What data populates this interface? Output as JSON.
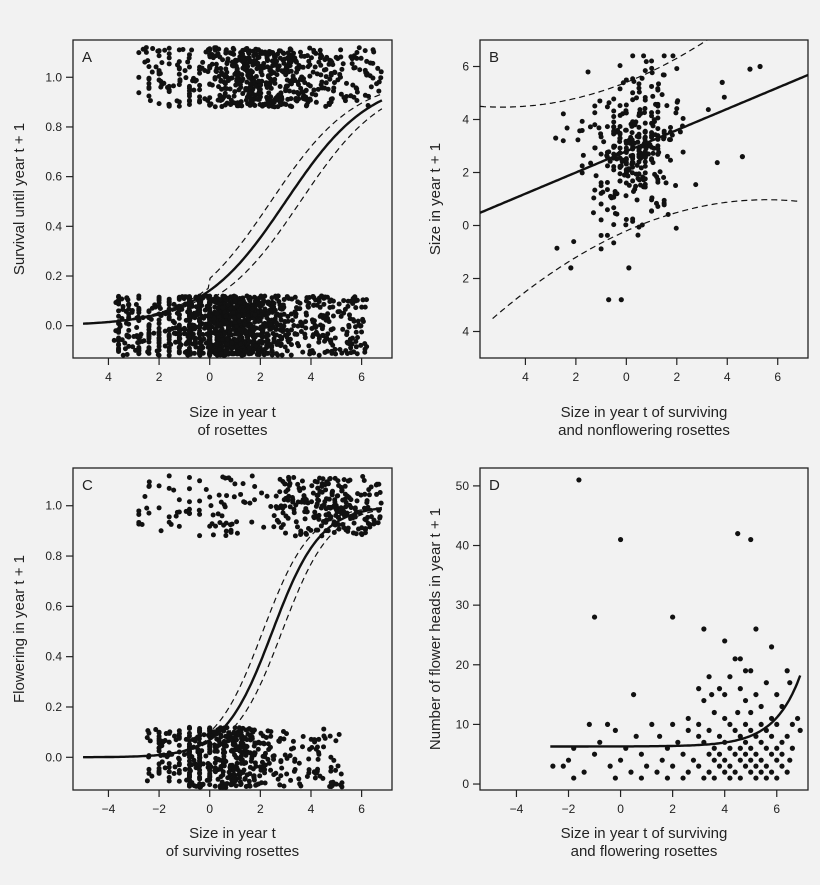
{
  "chart_data": [
    {
      "panel": "A",
      "type": "scatter",
      "xlabel": [
        "Size in year t",
        "of rosettes"
      ],
      "ylabel": "Survival until year t + 1",
      "xlim": [
        -5.4,
        7.2
      ],
      "ylim": [
        -0.13,
        1.15
      ],
      "xticks": [
        -4,
        -2,
        0,
        2,
        4,
        6
      ],
      "xtick_labels": [
        "4",
        "2",
        "0",
        "2",
        "4",
        "6"
      ],
      "yticks": [
        0.0,
        0.2,
        0.4,
        0.6,
        0.8,
        1.0
      ],
      "ytick_labels": [
        "0.0",
        "0.2",
        "0.4",
        "0.6",
        "0.8",
        "1.0"
      ],
      "fit": {
        "model": "logistic",
        "intercept": -1.8,
        "slope": 0.6,
        "ci_width": 0.35,
        "xrange": [
          -5,
          6.8
        ]
      },
      "clusters": [
        {
          "y": 1.0,
          "jitter": 0.12,
          "n": 650,
          "xrange": [
            -2.7,
            6.8
          ],
          "mode": 1.8
        },
        {
          "y": 0.0,
          "jitter": 0.12,
          "n": 1300,
          "xrange": [
            -3.8,
            6.2
          ],
          "mode": 0.8
        }
      ]
    },
    {
      "panel": "B",
      "type": "scatter",
      "xlabel": [
        "Size in year t of surviving",
        "and nonflowering rosettes"
      ],
      "ylabel": "Size in year t + 1",
      "xlim": [
        -5.8,
        7.2
      ],
      "ylim": [
        -5.0,
        7.0
      ],
      "xticks": [
        -4,
        -2,
        0,
        2,
        4,
        6
      ],
      "xtick_labels": [
        "4",
        "2",
        "0",
        "2",
        "4",
        "6"
      ],
      "yticks": [
        -4,
        -2,
        0,
        2,
        4,
        6
      ],
      "ytick_labels": [
        "4",
        "2",
        "0",
        "2",
        "4",
        "6"
      ],
      "fit": {
        "model": "linear",
        "intercept": 2.8,
        "slope": 0.4,
        "xrange": [
          -5.8,
          7.2
        ]
      },
      "pred_band": {
        "center": 0.3,
        "base": 2.6,
        "curv": 0.038
      },
      "cloud": {
        "n": 330,
        "xmean": 0.3,
        "xsd": 1.0,
        "ysd": 1.45
      }
    },
    {
      "panel": "C",
      "type": "scatter",
      "xlabel": [
        "Size in year t",
        "of surviving rosettes"
      ],
      "ylabel": "Flowering in year t + 1",
      "xlim": [
        -5.4,
        7.2
      ],
      "ylim": [
        -0.13,
        1.15
      ],
      "xticks": [
        -4,
        -2,
        0,
        2,
        4,
        6
      ],
      "xtick_labels": [
        "−4",
        "−2",
        "0",
        "2",
        "4",
        "6"
      ],
      "yticks": [
        0.0,
        0.2,
        0.4,
        0.6,
        0.8,
        1.0
      ],
      "ytick_labels": [
        "0.0",
        "0.2",
        "0.4",
        "0.6",
        "0.8",
        "1.0"
      ],
      "fit": {
        "model": "logistic",
        "intercept": -2.6,
        "slope": 1.05,
        "ci_width": 0.4,
        "xrange": [
          -5,
          6.8
        ]
      },
      "clusters": [
        {
          "y": 1.0,
          "jitter": 0.12,
          "n": 320,
          "xrange": [
            -2.7,
            6.8
          ],
          "mode": 4.8
        },
        {
          "y": 0.0,
          "jitter": 0.12,
          "n": 520,
          "xrange": [
            -2.5,
            5.3
          ],
          "mode": 0.5
        }
      ]
    },
    {
      "panel": "D",
      "type": "scatter",
      "xlabel": [
        "Size in year t of surviving",
        "and flowering rosettes"
      ],
      "ylabel": "Number of flower heads in year t + 1",
      "xlim": [
        -5.4,
        7.2
      ],
      "ylim": [
        -1,
        53
      ],
      "xticks": [
        -4,
        -2,
        0,
        2,
        4,
        6
      ],
      "xtick_labels": [
        "−4",
        "−2",
        "0",
        "2",
        "4",
        "6"
      ],
      "yticks": [
        0,
        10,
        20,
        30,
        40,
        50
      ],
      "ytick_labels": [
        "0",
        "10",
        "20",
        "30",
        "40",
        "50"
      ],
      "fit": {
        "model": "exp",
        "base": 6.3,
        "amp": 0.012,
        "rate": 1.0,
        "xrange": [
          -2.7,
          6.9
        ]
      },
      "points": [
        [
          -1.6,
          51
        ],
        [
          0.0,
          41
        ],
        [
          4.5,
          42
        ],
        [
          5.0,
          41
        ],
        [
          -1.0,
          28
        ],
        [
          2.0,
          28
        ],
        [
          3.2,
          26
        ],
        [
          5.2,
          26
        ],
        [
          4.0,
          24
        ],
        [
          5.8,
          23
        ],
        [
          4.4,
          21
        ],
        [
          4.6,
          21
        ],
        [
          4.8,
          19
        ],
        [
          5.0,
          19
        ],
        [
          6.4,
          19
        ],
        [
          3.4,
          18
        ],
        [
          4.2,
          18
        ],
        [
          5.6,
          17
        ],
        [
          6.5,
          17
        ],
        [
          3.0,
          16
        ],
        [
          3.8,
          16
        ],
        [
          4.6,
          16
        ],
        [
          0.5,
          15
        ],
        [
          3.5,
          15
        ],
        [
          4.0,
          15
        ],
        [
          5.2,
          15
        ],
        [
          6.0,
          15
        ],
        [
          3.2,
          14
        ],
        [
          4.8,
          14
        ],
        [
          5.4,
          13
        ],
        [
          6.2,
          13
        ],
        [
          3.6,
          12
        ],
        [
          4.5,
          12
        ],
        [
          5.0,
          12
        ],
        [
          2.6,
          11
        ],
        [
          4.0,
          11
        ],
        [
          5.8,
          11
        ],
        [
          6.8,
          11
        ],
        [
          -1.2,
          10
        ],
        [
          -0.5,
          10
        ],
        [
          1.2,
          10
        ],
        [
          2.0,
          10
        ],
        [
          3.0,
          10
        ],
        [
          4.2,
          10
        ],
        [
          4.8,
          10
        ],
        [
          5.4,
          10
        ],
        [
          6.0,
          10
        ],
        [
          6.6,
          10
        ],
        [
          -0.2,
          9
        ],
        [
          2.6,
          9
        ],
        [
          3.4,
          9
        ],
        [
          4.4,
          9
        ],
        [
          5.0,
          9
        ],
        [
          5.6,
          9
        ],
        [
          6.9,
          9
        ],
        [
          0.6,
          8
        ],
        [
          1.5,
          8
        ],
        [
          3.0,
          8
        ],
        [
          3.8,
          8
        ],
        [
          4.6,
          8
        ],
        [
          5.2,
          8
        ],
        [
          5.8,
          8
        ],
        [
          6.4,
          8
        ],
        [
          -0.8,
          7
        ],
        [
          2.2,
          7
        ],
        [
          3.2,
          7
        ],
        [
          4.0,
          7
        ],
        [
          4.8,
          7
        ],
        [
          5.4,
          7
        ],
        [
          6.2,
          7
        ],
        [
          -1.8,
          6
        ],
        [
          0.2,
          6
        ],
        [
          1.8,
          6
        ],
        [
          3.6,
          6
        ],
        [
          4.2,
          6
        ],
        [
          4.6,
          6
        ],
        [
          5.0,
          6
        ],
        [
          5.6,
          6
        ],
        [
          6.0,
          6
        ],
        [
          6.6,
          6
        ],
        [
          -1.0,
          5
        ],
        [
          0.8,
          5
        ],
        [
          2.4,
          5
        ],
        [
          3.4,
          5
        ],
        [
          3.8,
          5
        ],
        [
          4.4,
          5
        ],
        [
          4.8,
          5
        ],
        [
          5.2,
          5
        ],
        [
          5.8,
          5
        ],
        [
          6.2,
          5
        ],
        [
          -2.0,
          4
        ],
        [
          0.0,
          4
        ],
        [
          1.6,
          4
        ],
        [
          2.8,
          4
        ],
        [
          3.6,
          4
        ],
        [
          4.0,
          4
        ],
        [
          4.6,
          4
        ],
        [
          5.0,
          4
        ],
        [
          5.4,
          4
        ],
        [
          6.0,
          4
        ],
        [
          6.5,
          4
        ],
        [
          -2.6,
          3
        ],
        [
          -2.2,
          3
        ],
        [
          -0.4,
          3
        ],
        [
          1.0,
          3
        ],
        [
          2.0,
          3
        ],
        [
          3.0,
          3
        ],
        [
          3.8,
          3
        ],
        [
          4.2,
          3
        ],
        [
          4.8,
          3
        ],
        [
          5.2,
          3
        ],
        [
          5.6,
          3
        ],
        [
          6.2,
          3
        ],
        [
          -1.4,
          2
        ],
        [
          0.4,
          2
        ],
        [
          1.4,
          2
        ],
        [
          2.6,
          2
        ],
        [
          3.4,
          2
        ],
        [
          4.0,
          2
        ],
        [
          4.4,
          2
        ],
        [
          5.0,
          2
        ],
        [
          5.4,
          2
        ],
        [
          5.8,
          2
        ],
        [
          6.4,
          2
        ],
        [
          -1.8,
          1
        ],
        [
          -0.2,
          1
        ],
        [
          0.8,
          1
        ],
        [
          1.8,
          1
        ],
        [
          2.4,
          1
        ],
        [
          3.2,
          1
        ],
        [
          3.6,
          1
        ],
        [
          4.2,
          1
        ],
        [
          4.6,
          1
        ],
        [
          5.2,
          1
        ],
        [
          5.6,
          1
        ],
        [
          6.0,
          1
        ]
      ]
    }
  ]
}
